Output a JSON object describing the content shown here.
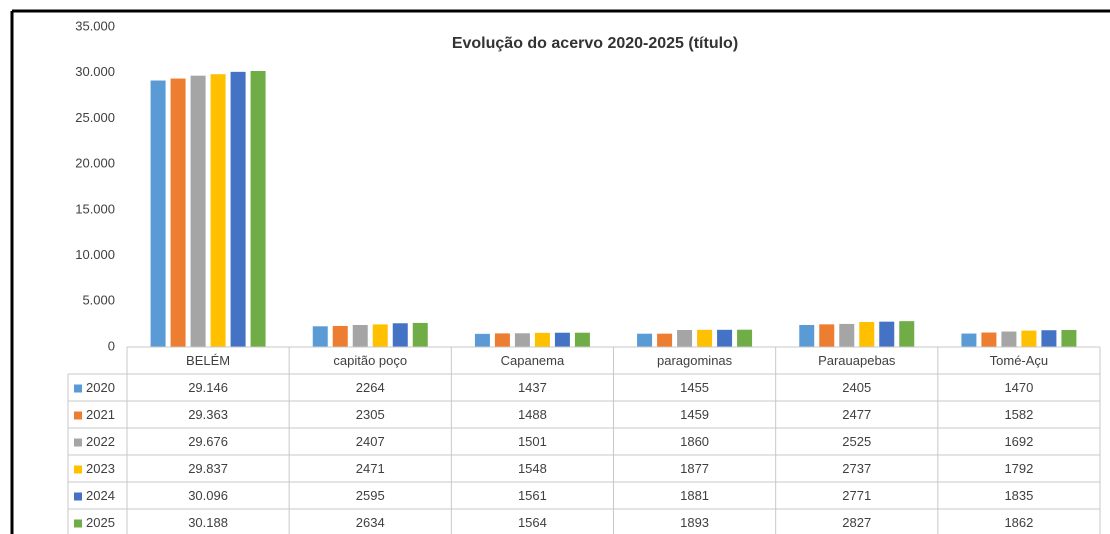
{
  "chart_data": {
    "type": "bar",
    "title": "Evolução do acervo  2020-2025 (título)",
    "categories": [
      "BELÉM",
      "capitão poço",
      "Capanema",
      "paragominas",
      "Parauapebas",
      "Tomé-Açu"
    ],
    "series": [
      {
        "name": "2020",
        "color": "#5b9bd5",
        "values": [
          29146,
          2264,
          1437,
          1455,
          2405,
          1470
        ],
        "value_labels": [
          "29.146",
          "2264",
          "1437",
          "1455",
          "2405",
          "1470"
        ]
      },
      {
        "name": "2021",
        "color": "#ed7d31",
        "values": [
          29363,
          2305,
          1488,
          1459,
          2477,
          1582
        ],
        "value_labels": [
          "29.363",
          "2305",
          "1488",
          "1459",
          "2477",
          "1582"
        ]
      },
      {
        "name": "2022",
        "color": "#a5a5a5",
        "values": [
          29676,
          2407,
          1501,
          1860,
          2525,
          1692
        ],
        "value_labels": [
          "29.676",
          "2407",
          "1501",
          "1860",
          "2525",
          "1692"
        ]
      },
      {
        "name": "2023",
        "color": "#ffc000",
        "values": [
          29837,
          2471,
          1548,
          1877,
          2737,
          1792
        ],
        "value_labels": [
          "29.837",
          "2471",
          "1548",
          "1877",
          "2737",
          "1792"
        ]
      },
      {
        "name": "2024",
        "color": "#4472c4",
        "values": [
          30096,
          2595,
          1561,
          1881,
          2771,
          1835
        ],
        "value_labels": [
          "30.096",
          "2595",
          "1561",
          "1881",
          "2771",
          "1835"
        ]
      },
      {
        "name": "2025",
        "color": "#70ad47",
        "values": [
          30188,
          2634,
          1564,
          1893,
          2827,
          1862
        ],
        "value_labels": [
          "30.188",
          "2634",
          "1564",
          "1893",
          "2827",
          "1862"
        ]
      }
    ],
    "ylim": [
      0,
      35000
    ],
    "yticks": [
      0,
      {
        "value": 5000,
        "label": "5.000"
      },
      {
        "value": 10000,
        "label": "10.000"
      },
      {
        "value": 15000,
        "label": "15.000"
      },
      {
        "value": 20000,
        "label": "20.000"
      },
      {
        "value": 25000,
        "label": "25.000"
      },
      {
        "value": 30000,
        "label": "30.000"
      },
      {
        "value": 35000,
        "label": "35.000"
      }
    ],
    "grid": false
  }
}
